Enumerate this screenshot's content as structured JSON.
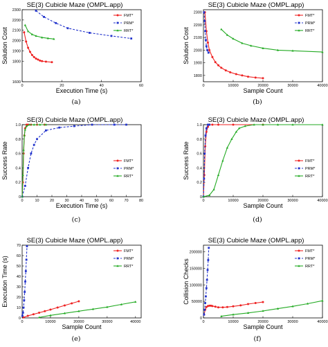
{
  "figure": {
    "legend_labels": [
      "FMT*",
      "PRM*",
      "RRT*"
    ],
    "colors": {
      "FMT*": "#ee2222",
      "PRM*": "#2233cc",
      "RRT*": "#22aa22"
    }
  },
  "chart_data": [
    {
      "id": "a",
      "type": "line",
      "title": "SE(3) Cubicle Maze (OMPL.app)",
      "xlabel": "Execution Time (s)",
      "ylabel": "Solution Cost",
      "caption": "(a)",
      "xlim": [
        0,
        60
      ],
      "ylim": [
        1600,
        2300
      ],
      "xticks": [
        0,
        20,
        40,
        60
      ],
      "yticks": [
        1600,
        1800,
        1900,
        2000,
        2100,
        2200,
        2300
      ],
      "xtick_labels": [
        "0",
        "20",
        "40",
        "60"
      ],
      "ytick_labels": [
        "1600",
        "1800",
        "1900",
        "2000",
        "2100",
        "2200",
        "2300"
      ],
      "legend": "top-right",
      "series": [
        {
          "name": "FMT*",
          "style": "solid",
          "x": [
            1,
            2,
            3,
            4,
            5,
            6,
            7,
            8,
            9,
            10,
            12,
            15
          ],
          "y": [
            2080,
            1990,
            1930,
            1890,
            1860,
            1840,
            1825,
            1815,
            1805,
            1800,
            1795,
            1790
          ]
        },
        {
          "name": "PRM*",
          "style": "dashed",
          "x": [
            7,
            11,
            17,
            23,
            34,
            45,
            55
          ],
          "y": [
            2290,
            2230,
            2170,
            2120,
            2075,
            2045,
            2020
          ]
        },
        {
          "name": "RRT*",
          "style": "solid",
          "x": [
            1.5,
            3,
            5,
            7,
            10,
            13,
            16
          ],
          "y": [
            2150,
            2090,
            2060,
            2045,
            2030,
            2022,
            2015
          ]
        }
      ]
    },
    {
      "id": "b",
      "type": "line",
      "title": "SE(3) Cubicle Maze (OMPL.app)",
      "xlabel": "Sample Count",
      "ylabel": "Solution Cost",
      "caption": "(b)",
      "xlim": [
        0,
        40000
      ],
      "ylim": [
        1750,
        2320
      ],
      "xticks": [
        0,
        10000,
        20000,
        30000,
        40000
      ],
      "yticks": [
        1800,
        1900,
        2000,
        2100,
        2200,
        2300
      ],
      "xtick_labels": [
        "0",
        "10000",
        "20000",
        "30000",
        "40000"
      ],
      "ytick_labels": [
        "1800",
        "1900",
        "2000",
        "2100",
        "2200",
        "2300"
      ],
      "legend": "top-right",
      "series": [
        {
          "name": "FMT*",
          "style": "solid",
          "x": [
            500,
            1000,
            1500,
            2000,
            3000,
            4000,
            5000,
            6000,
            7500,
            9000,
            11000,
            13000,
            15000,
            17500,
            20000
          ],
          "y": [
            2300,
            2150,
            2060,
            2000,
            1945,
            1905,
            1880,
            1860,
            1840,
            1825,
            1810,
            1800,
            1790,
            1783,
            1778
          ]
        },
        {
          "name": "PRM*",
          "style": "dashed",
          "x": [
            200,
            400,
            600,
            800,
            1000,
            1300,
            1700
          ],
          "y": [
            2300,
            2230,
            2150,
            2080,
            2030,
            2000,
            1980
          ]
        },
        {
          "name": "RRT*",
          "style": "solid",
          "x": [
            6000,
            8000,
            10000,
            13000,
            16000,
            20000,
            25000,
            30000,
            40000
          ],
          "y": [
            2165,
            2120,
            2090,
            2055,
            2035,
            2015,
            2000,
            1995,
            1985
          ]
        }
      ]
    },
    {
      "id": "c",
      "type": "line",
      "title": "SE(3) Cubicle Maze (OMPL.app)",
      "xlabel": "Execution Time (s)",
      "ylabel": "Success Rate",
      "caption": "(c)",
      "xlim": [
        0,
        80
      ],
      "ylim": [
        0,
        1
      ],
      "xticks": [
        0,
        10,
        20,
        30,
        40,
        50,
        60,
        70,
        80
      ],
      "yticks": [
        0,
        0.2,
        0.4,
        0.6,
        0.8,
        1
      ],
      "xtick_labels": [
        "0",
        "10",
        "20",
        "30",
        "40",
        "50",
        "60",
        "70",
        "80"
      ],
      "ytick_labels": [
        "0",
        "0.2",
        "0.4",
        "0.6",
        "0.8",
        "1.0"
      ],
      "legend": "center-right",
      "series": [
        {
          "name": "FMT*",
          "style": "solid",
          "x": [
            0,
            0.5,
            1,
            1.5,
            2,
            3,
            4,
            6,
            10,
            15
          ],
          "y": [
            0,
            0.2,
            0.6,
            0.85,
            0.95,
            1,
            1,
            1,
            1,
            1
          ]
        },
        {
          "name": "PRM*",
          "style": "dashed",
          "x": [
            0,
            2,
            4,
            6,
            8,
            10,
            16,
            25,
            35,
            47,
            62,
            70
          ],
          "y": [
            0,
            0.15,
            0.4,
            0.6,
            0.72,
            0.8,
            0.92,
            0.96,
            0.98,
            1,
            1,
            1
          ]
        },
        {
          "name": "RRT*",
          "style": "solid",
          "x": [
            0,
            0.5,
            1,
            1.5,
            2,
            3,
            5,
            8,
            12,
            16
          ],
          "y": [
            0,
            0.3,
            0.65,
            0.85,
            0.93,
            0.98,
            1,
            1,
            1,
            1
          ]
        }
      ]
    },
    {
      "id": "d",
      "type": "line",
      "title": "SE(3) Cubicle Maze (OMPL.app)",
      "xlabel": "Sample Count",
      "ylabel": "Success Rate",
      "caption": "(d)",
      "xlim": [
        0,
        40000
      ],
      "ylim": [
        0,
        1
      ],
      "xticks": [
        0,
        10000,
        20000,
        30000,
        40000
      ],
      "yticks": [
        0,
        0.2,
        0.4,
        0.6,
        0.8,
        1
      ],
      "xtick_labels": [
        "0",
        "10000",
        "20000",
        "30000",
        "40000"
      ],
      "ytick_labels": [
        "0",
        "0.2",
        "0.4",
        "0.6",
        "0.8",
        "1.0"
      ],
      "legend": "center-right",
      "series": [
        {
          "name": "FMT*",
          "style": "solid",
          "x": [
            0,
            300,
            600,
            1000,
            1500,
            2000,
            3000,
            5000,
            10000,
            20000
          ],
          "y": [
            0,
            0.3,
            0.7,
            0.9,
            0.97,
            1,
            1,
            1,
            1,
            1
          ]
        },
        {
          "name": "PRM*",
          "style": "dashed",
          "x": [
            0,
            200,
            400,
            700,
            1000,
            1500,
            2000
          ],
          "y": [
            0,
            0.25,
            0.6,
            0.85,
            0.95,
            1,
            1
          ]
        },
        {
          "name": "RRT*",
          "style": "solid",
          "x": [
            0,
            2000,
            3500,
            5000,
            6500,
            8000,
            9500,
            11000,
            12000,
            14000,
            17000,
            20000,
            25000,
            30000,
            40000
          ],
          "y": [
            0,
            0.02,
            0.1,
            0.3,
            0.5,
            0.68,
            0.8,
            0.9,
            0.95,
            0.98,
            1,
            1,
            1,
            1,
            1
          ]
        }
      ]
    },
    {
      "id": "e",
      "type": "line",
      "title": "SE(3) Cubicle Maze (OMPL.app)",
      "xlabel": "Sample Count",
      "ylabel": "Execution Time (s)",
      "caption": "(e)",
      "xlim": [
        0,
        42000
      ],
      "ylim": [
        0,
        70
      ],
      "xticks": [
        0,
        10000,
        20000,
        30000,
        40000
      ],
      "yticks": [
        0,
        10,
        20,
        30,
        40,
        50,
        60,
        70
      ],
      "xtick_labels": [
        "0",
        "10000",
        "20000",
        "30000",
        "40000"
      ],
      "ytick_labels": [
        "0",
        "10",
        "20",
        "30",
        "40",
        "50",
        "60",
        "70"
      ],
      "legend": "top-right",
      "series": [
        {
          "name": "FMT*",
          "style": "solid",
          "x": [
            500,
            2000,
            4000,
            6000,
            8000,
            10000,
            12500,
            15000,
            17500,
            20000
          ],
          "y": [
            0.5,
            2,
            3.5,
            5,
            6.5,
            8,
            10,
            12,
            14,
            16
          ]
        },
        {
          "name": "PRM*",
          "style": "dashed",
          "x": [
            100,
            300,
            500,
            700,
            900,
            1100,
            1300,
            1500,
            1700
          ],
          "y": [
            2,
            5,
            10,
            17,
            25,
            35,
            45,
            56,
            69
          ]
        },
        {
          "name": "RRT*",
          "style": "solid",
          "x": [
            6000,
            10000,
            15000,
            20000,
            25000,
            30000,
            35000,
            40000
          ],
          "y": [
            0.5,
            2.5,
            4.5,
            6.5,
            8.5,
            10.5,
            13,
            15.5
          ]
        }
      ]
    },
    {
      "id": "f",
      "type": "line",
      "title": "SE(3) Cubicle Maze (OMPL.app)",
      "xlabel": "Sample Count",
      "ylabel": "Collision Checks",
      "caption": "(f)",
      "xlim": [
        0,
        40000
      ],
      "ylim": [
        0,
        220000
      ],
      "xticks": [
        0,
        10000,
        20000,
        30000,
        40000
      ],
      "yticks": [
        0,
        50000,
        100000,
        150000,
        200000
      ],
      "xtick_labels": [
        "0",
        "10000",
        "20000",
        "30000",
        "40000"
      ],
      "ytick_labels": [
        "0",
        "50000",
        "100000",
        "150000",
        "200000"
      ],
      "legend": "top-right",
      "series": [
        {
          "name": "FMT*",
          "style": "solid",
          "x": [
            200,
            600,
            1000,
            1500,
            2000,
            2500,
            3000,
            4000,
            5000,
            6500,
            8000,
            10000,
            12500,
            15000,
            17500,
            20000
          ],
          "y": [
            10000,
            25000,
            33000,
            36000,
            37000,
            37000,
            36000,
            34000,
            32000,
            32000,
            33000,
            35000,
            38000,
            42000,
            45000,
            48000
          ]
        },
        {
          "name": "PRM*",
          "style": "dashed",
          "x": [
            200,
            400,
            600,
            800,
            1000,
            1200,
            1400,
            1600,
            1800
          ],
          "y": [
            10000,
            25000,
            45000,
            65000,
            90000,
            115000,
            145000,
            175000,
            212000
          ]
        },
        {
          "name": "RRT*",
          "style": "solid",
          "x": [
            6000,
            10000,
            15000,
            20000,
            25000,
            30000,
            35000,
            40000
          ],
          "y": [
            5000,
            10000,
            15000,
            21000,
            28000,
            35000,
            43000,
            52000
          ]
        }
      ]
    }
  ]
}
